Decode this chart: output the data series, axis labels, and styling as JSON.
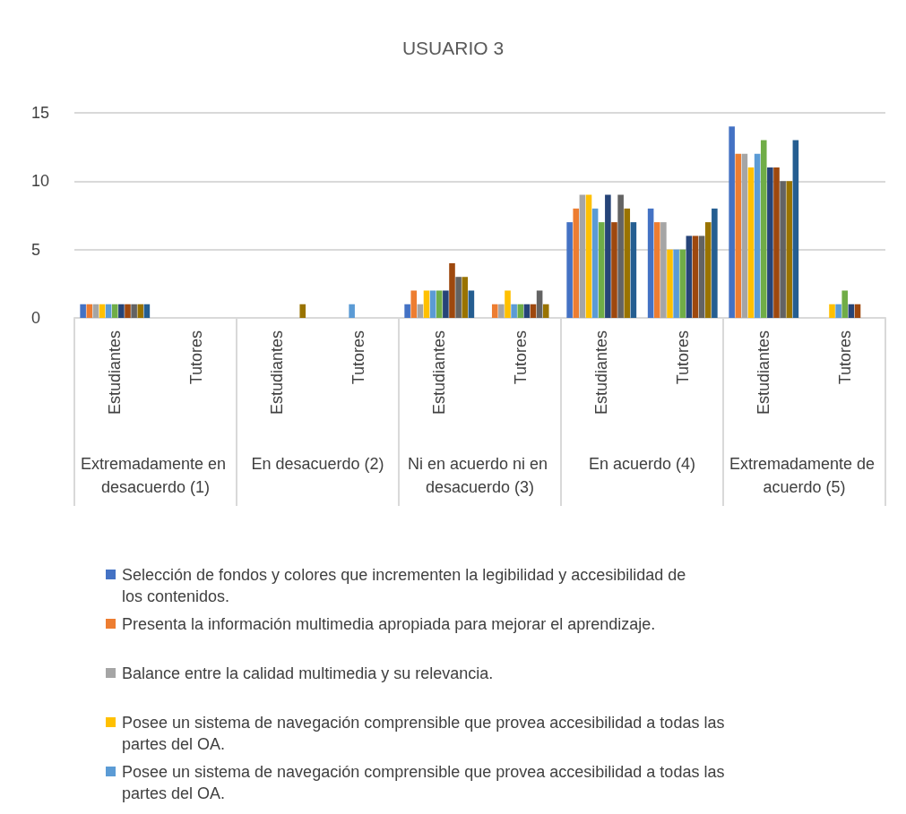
{
  "chart_data": {
    "type": "bar",
    "title": "USUARIO 3",
    "categories": [
      "Estudiantes",
      "Tutores",
      "Estudiantes",
      "Tutores",
      "Estudiantes",
      "Tutores",
      "Estudiantes",
      "Tutores",
      "Estudiantes",
      "Tutores"
    ],
    "annotations": [
      "Extremadamente en desacuerdo (1)",
      "En desacuerdo (2)",
      "Ni en acuerdo ni en desacuerdo (3)",
      "En acuerdo (4)",
      "Extremadamente de acuerdo (5)"
    ],
    "series": [
      {
        "name": "Selección de fondos y colores que incrementen la legibilidad y accesibilidad de los contenidos.",
        "color": "#4472c4",
        "values": [
          1,
          null,
          null,
          null,
          1,
          null,
          7,
          8,
          14,
          null
        ]
      },
      {
        "name": "Presenta la información multimedia apropiada para mejorar el aprendizaje.",
        "color": "#ed7d31",
        "values": [
          1,
          null,
          null,
          null,
          2,
          1,
          8,
          7,
          12,
          null
        ]
      },
      {
        "name": "Balance entre la calidad multimedia y su relevancia.",
        "color": "#a5a5a5",
        "values": [
          1,
          null,
          null,
          null,
          1,
          1,
          9,
          7,
          12,
          null
        ]
      },
      {
        "name": "Posee un sistema de navegación comprensible que provea accesibilidad a todas las partes del OA.",
        "color": "#ffc000",
        "values": [
          1,
          null,
          null,
          null,
          2,
          2,
          9,
          5,
          11,
          1
        ]
      },
      {
        "name": "Posee un sistema de navegación comprensible que provea accesibilidad a todas las partes del OA.",
        "color": "#5b9bd5",
        "values": [
          1,
          null,
          null,
          1,
          2,
          1,
          8,
          5,
          12,
          1
        ]
      },
      {
        "color": "#70ad47",
        "values": [
          1,
          null,
          null,
          null,
          2,
          1,
          7,
          5,
          13,
          2
        ]
      },
      {
        "color": "#264478",
        "values": [
          1,
          null,
          null,
          null,
          2,
          1,
          9,
          6,
          11,
          1
        ]
      },
      {
        "color": "#9e480e",
        "values": [
          1,
          null,
          null,
          null,
          4,
          1,
          7,
          6,
          11,
          1
        ]
      },
      {
        "color": "#636363",
        "values": [
          1,
          null,
          null,
          null,
          3,
          2,
          9,
          6,
          10,
          null
        ]
      },
      {
        "color": "#997300",
        "values": [
          1,
          null,
          1,
          null,
          3,
          1,
          8,
          7,
          10,
          null
        ]
      },
      {
        "color": "#255e91",
        "values": [
          1,
          null,
          null,
          null,
          2,
          null,
          7,
          8,
          13,
          null
        ]
      }
    ],
    "ylim": [
      0,
      15
    ],
    "yticks": [
      0,
      5,
      10,
      15
    ],
    "grid": "y",
    "legend": "bottom"
  }
}
